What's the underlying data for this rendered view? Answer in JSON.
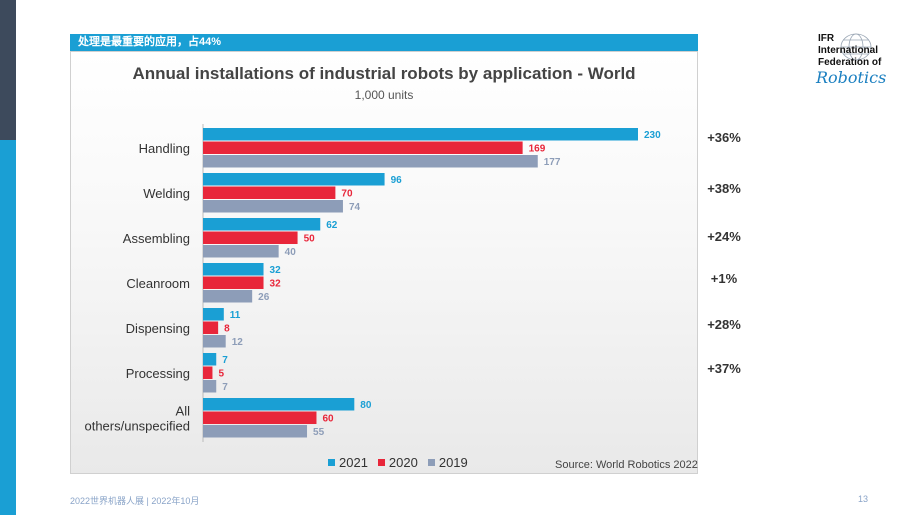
{
  "banner": {
    "text": "处理是最重要的应用，占44%"
  },
  "chart_data": {
    "type": "bar",
    "orientation": "horizontal",
    "title": "Annual installations of industrial robots by application - World",
    "subtitle": "1,000 units",
    "categories": [
      "Handling",
      "Welding",
      "Assembling",
      "Cleanroom",
      "Dispensing",
      "Processing",
      "All others/unspecified"
    ],
    "category_lines": [
      [
        "Handling"
      ],
      [
        "Welding"
      ],
      [
        "Assembling"
      ],
      [
        "Cleanroom"
      ],
      [
        "Dispensing"
      ],
      [
        "Processing"
      ],
      [
        "All",
        "others/unspecified"
      ]
    ],
    "series": [
      {
        "name": "2021",
        "color": "#1a9fd4",
        "values": [
          230,
          96,
          62,
          32,
          11,
          7,
          80
        ]
      },
      {
        "name": "2020",
        "color": "#e8263a",
        "values": [
          169,
          70,
          50,
          32,
          8,
          5,
          60
        ]
      },
      {
        "name": "2019",
        "color": "#8d9db8",
        "values": [
          177,
          74,
          40,
          26,
          12,
          7,
          55
        ]
      }
    ],
    "xlim": [
      0,
      250
    ],
    "growth": [
      "+36%",
      "+38%",
      "+24%",
      "+1%",
      "+28%",
      "+37%"
    ],
    "source": "Source: World Robotics 2022"
  },
  "logo": {
    "lines": [
      "IFR",
      "International",
      "Federation of"
    ],
    "script": "Robotics"
  },
  "footer": {
    "left": "2022世界机器人展 | 2022年10月",
    "page": "13"
  }
}
